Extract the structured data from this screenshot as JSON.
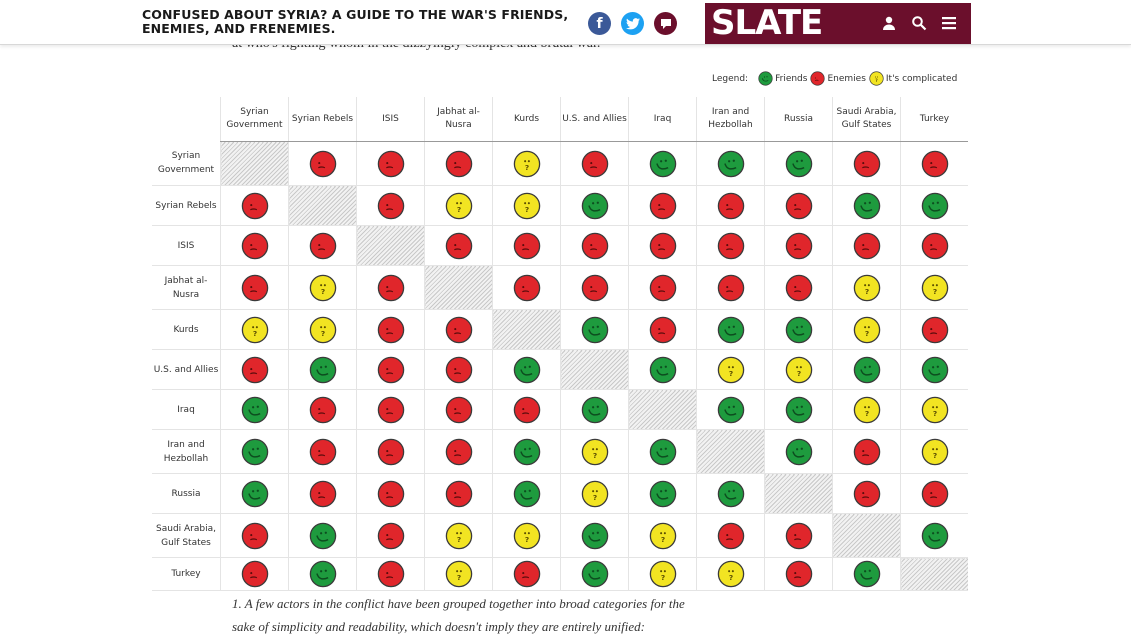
{
  "header": {
    "headline": "CONFUSED ABOUT SYRIA? A GUIDE TO THE WAR'S FRIENDS, ENEMIES, AND FRENEMIES.",
    "brand": "SLATE",
    "brand_color": "#6b0f2c",
    "social_icons": [
      "facebook-icon",
      "twitter-icon",
      "comment-icon"
    ],
    "menu_icons": [
      "user-icon",
      "search-icon",
      "hamburger-menu-icon"
    ]
  },
  "intro_partial": "at who's fighting whom in the dizzyingly complex and brutal war.",
  "legend": {
    "title": "Legend:",
    "items": [
      {
        "key": "F",
        "label": "Friends",
        "color": "#1e9b3e"
      },
      {
        "key": "E",
        "label": "Enemies",
        "color": "#e0262b"
      },
      {
        "key": "C",
        "label": "It's complicated",
        "color": "#f2e422"
      }
    ]
  },
  "chart_data": {
    "type": "table",
    "columns": [
      "Syrian Government",
      "Syrian Rebels",
      "ISIS",
      "Jabhat al-Nusra",
      "Kurds",
      "U.S. and Allies",
      "Iraq",
      "Iran and Hezbollah",
      "Russia",
      "Saudi Arabia, Gulf States",
      "Turkey"
    ],
    "rows": [
      {
        "label": "Syrian Government",
        "values": [
          "-",
          "E",
          "E",
          "E",
          "C",
          "E",
          "F",
          "F",
          "F",
          "E",
          "E"
        ]
      },
      {
        "label": "Syrian Rebels",
        "values": [
          "E",
          "-",
          "E",
          "C",
          "C",
          "F",
          "E",
          "E",
          "E",
          "F",
          "F"
        ]
      },
      {
        "label": "ISIS",
        "values": [
          "E",
          "E",
          "-",
          "E",
          "E",
          "E",
          "E",
          "E",
          "E",
          "E",
          "E"
        ]
      },
      {
        "label": "Jabhat al-Nusra",
        "values": [
          "E",
          "C",
          "E",
          "-",
          "E",
          "E",
          "E",
          "E",
          "E",
          "C",
          "C"
        ]
      },
      {
        "label": "Kurds",
        "values": [
          "C",
          "C",
          "E",
          "E",
          "-",
          "F",
          "E",
          "F",
          "F",
          "C",
          "E"
        ]
      },
      {
        "label": "U.S. and Allies",
        "values": [
          "E",
          "F",
          "E",
          "E",
          "F",
          "-",
          "F",
          "C",
          "C",
          "F",
          "F"
        ]
      },
      {
        "label": "Iraq",
        "values": [
          "F",
          "E",
          "E",
          "E",
          "E",
          "F",
          "-",
          "F",
          "F",
          "C",
          "C"
        ]
      },
      {
        "label": "Iran and Hezbollah",
        "values": [
          "F",
          "E",
          "E",
          "E",
          "F",
          "C",
          "F",
          "-",
          "F",
          "E",
          "C"
        ]
      },
      {
        "label": "Russia",
        "values": [
          "F",
          "E",
          "E",
          "E",
          "F",
          "C",
          "F",
          "F",
          "-",
          "E",
          "E"
        ]
      },
      {
        "label": "Saudi Arabia, Gulf States",
        "values": [
          "E",
          "F",
          "E",
          "C",
          "C",
          "F",
          "C",
          "E",
          "E",
          "-",
          "F"
        ]
      },
      {
        "label": "Turkey",
        "values": [
          "E",
          "F",
          "E",
          "C",
          "E",
          "F",
          "C",
          "C",
          "E",
          "F",
          "-"
        ]
      }
    ]
  },
  "footnote": "1. A few actors in the conflict have been grouped together into broad categories for the sake of simplicity and readability, which doesn't imply they are entirely unified:"
}
